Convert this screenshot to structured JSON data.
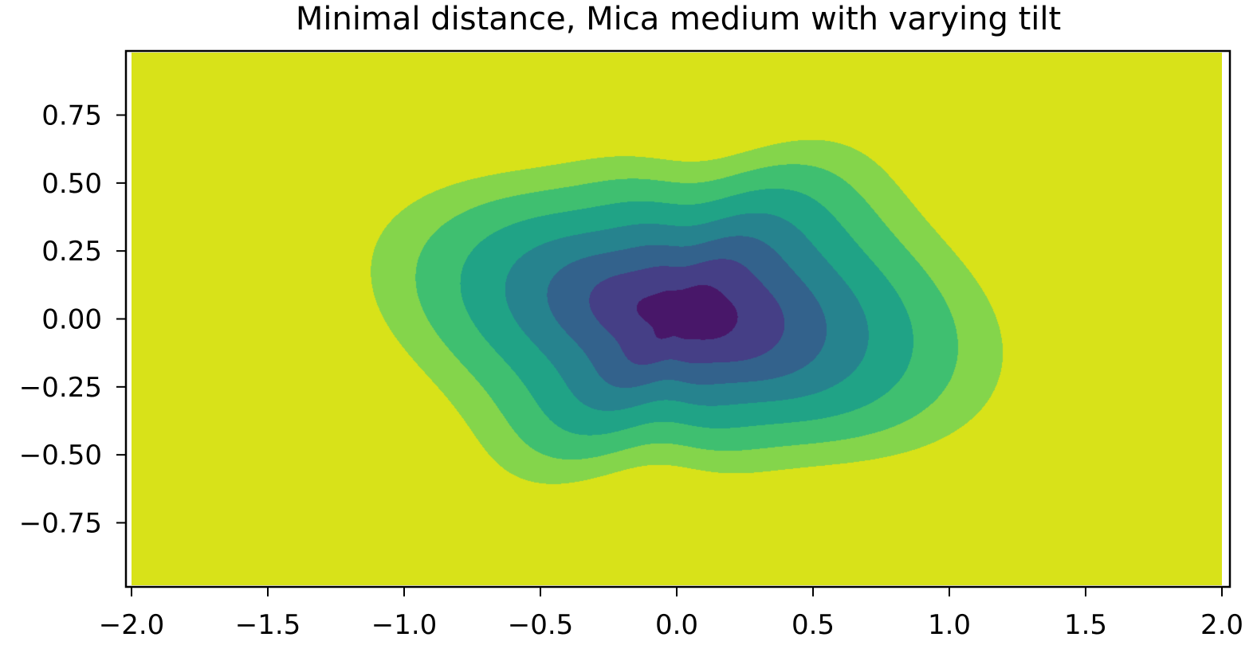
{
  "chart_data": {
    "type": "contourf",
    "title": "Minimal distance, Mica medium with varying tilt",
    "xlabel": "",
    "ylabel": "",
    "xlim": [
      -2.0,
      2.0
    ],
    "ylim": [
      -0.98,
      0.98
    ],
    "x_ticks": [
      -2.0,
      -1.5,
      -1.0,
      -0.5,
      0.0,
      0.5,
      1.0,
      1.5,
      2.0
    ],
    "x_tick_labels": [
      "−2.0",
      "−1.5",
      "−1.0",
      "−0.5",
      "0.0",
      "0.5",
      "1.0",
      "1.5",
      "2.0"
    ],
    "y_ticks": [
      -0.75,
      -0.5,
      -0.25,
      0.0,
      0.25,
      0.5,
      0.75
    ],
    "y_tick_labels": [
      "−0.75",
      "−0.50",
      "−0.25",
      "0.00",
      "0.25",
      "0.50",
      "0.75"
    ],
    "grid": false,
    "colormap": "viridis",
    "level_colors": [
      "#440154",
      "#46327e",
      "#365c8d",
      "#277f8e",
      "#1fa187",
      "#4ac16d",
      "#a0da39",
      "#fde725"
    ],
    "band_colors": [
      "#481769",
      "#453f86",
      "#33628c",
      "#26838e",
      "#20a386",
      "#3fbf70",
      "#84d54b",
      "#d8e219"
    ],
    "field": {
      "description": "distance from the origin, elliptical contours with slight wavy tilt distortion",
      "center": [
        0.0,
        0.0
      ],
      "x_scale": 1.0,
      "y_scale": 0.5,
      "tilt_ripple": 0.08
    }
  }
}
